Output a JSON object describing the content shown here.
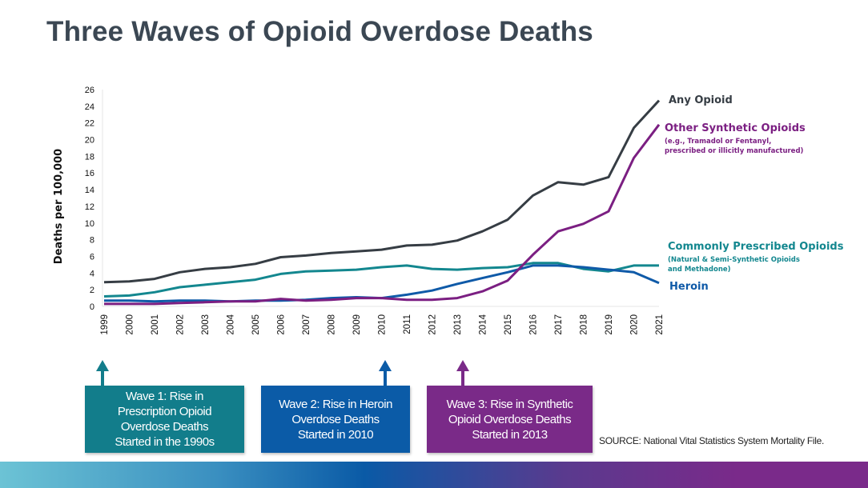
{
  "title": "Three Waves of Opioid Overdose Deaths",
  "chart_data": {
    "type": "line",
    "ylabel": "Deaths per 100,000",
    "xlabel": "",
    "ylim": [
      0,
      26
    ],
    "yticks": [
      0,
      2,
      4,
      6,
      8,
      10,
      12,
      14,
      16,
      18,
      20,
      22,
      24,
      26
    ],
    "grid": false,
    "legend": "right (inline labels at line ends)",
    "x": [
      "1999",
      "2000",
      "2001",
      "2002",
      "2003",
      "2004",
      "2005",
      "2006",
      "2007",
      "2008",
      "2009",
      "2010",
      "2011",
      "2012",
      "2013",
      "2014",
      "2015",
      "2016",
      "2017",
      "2018",
      "2019",
      "2020",
      "2021"
    ],
    "series": [
      {
        "name": "Any Opioid",
        "sub": "",
        "color": "#363d44",
        "values": [
          2.9,
          3.0,
          3.3,
          4.1,
          4.5,
          4.7,
          5.1,
          5.9,
          6.1,
          6.4,
          6.6,
          6.8,
          7.3,
          7.4,
          7.9,
          9.0,
          10.4,
          13.3,
          14.9,
          14.6,
          15.5,
          21.4,
          24.7
        ]
      },
      {
        "name": "Other Synthetic Opioids",
        "sub": [
          "(e.g., Tramadol or Fentanyl,",
          "prescribed or illicitly manufactured)"
        ],
        "color": "#7b1f82",
        "values": [
          0.3,
          0.3,
          0.3,
          0.4,
          0.5,
          0.6,
          0.6,
          0.9,
          0.7,
          0.8,
          1.0,
          1.0,
          0.8,
          0.8,
          1.0,
          1.8,
          3.1,
          6.2,
          9.0,
          9.9,
          11.4,
          17.8,
          21.8
        ]
      },
      {
        "name": "Commonly Prescribed Opioids",
        "sub": [
          "(Natural & Semi-Synthetic Opioids",
          "and Methadone)"
        ],
        "color": "#13878f",
        "values": [
          1.2,
          1.3,
          1.7,
          2.3,
          2.6,
          2.9,
          3.2,
          3.9,
          4.2,
          4.3,
          4.4,
          4.7,
          4.9,
          4.5,
          4.4,
          4.6,
          4.7,
          5.2,
          5.2,
          4.5,
          4.2,
          4.9,
          4.9
        ]
      },
      {
        "name": "Heroin",
        "sub": "",
        "color": "#0f5aa8",
        "values": [
          0.7,
          0.7,
          0.6,
          0.7,
          0.7,
          0.6,
          0.7,
          0.7,
          0.8,
          1.0,
          1.1,
          1.0,
          1.4,
          1.9,
          2.7,
          3.4,
          4.1,
          4.9,
          4.9,
          4.7,
          4.4,
          4.1,
          2.8
        ]
      }
    ]
  },
  "waves": [
    {
      "lines": [
        "Wave 1: Rise in",
        "Prescription Opioid",
        "Overdose Deaths",
        "Started in the 1990s"
      ],
      "color": "#127d8b"
    },
    {
      "lines": [
        "Wave 2: Rise in Heroin",
        "Overdose Deaths",
        "Started in 2010"
      ],
      "color": "#0b5ba7"
    },
    {
      "lines": [
        "Wave 3: Rise in Synthetic",
        "Opioid Overdose Deaths",
        "Started in 2013"
      ],
      "color": "#7a2a88"
    }
  ],
  "source": "SOURCE: National Vital Statistics System Mortality File."
}
